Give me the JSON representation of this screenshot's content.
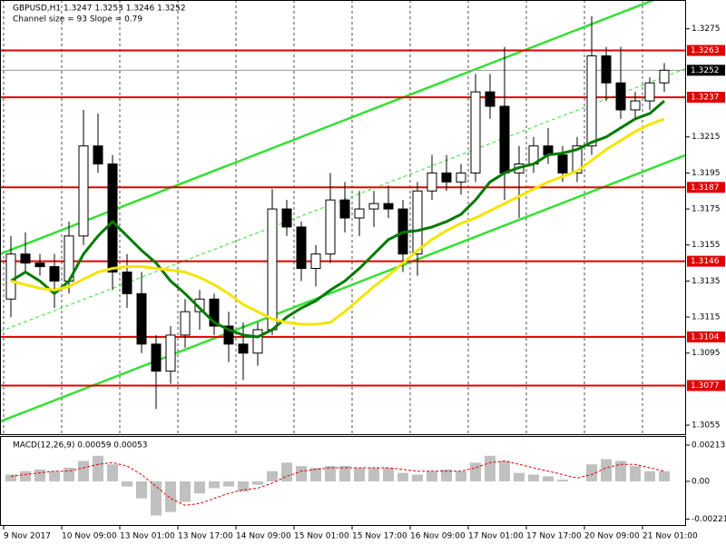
{
  "chart_data": [
    {
      "type": "candlestick",
      "title": "GBPUSD,H1  1.3247 1.3253 1.3246 1.3252",
      "subtitle": "Channel size = 93 Slope = 0.79",
      "categories": [
        "9 Nov 2017",
        null,
        null,
        null,
        "10 Nov 09:00",
        null,
        null,
        null,
        "13 Nov 01:00",
        null,
        null,
        null,
        "13 Nov 17:00",
        null,
        null,
        null,
        "14 Nov 09:00",
        null,
        null,
        null,
        "15 Nov 01:00",
        null,
        null,
        null,
        "15 Nov 17:00",
        null,
        null,
        null,
        "16 Nov 09:00",
        null,
        null,
        null,
        "17 Nov 01:00",
        null,
        null,
        null,
        "17 Nov 17:00",
        null,
        null,
        null,
        "20 Nov 09:00",
        null,
        null,
        null,
        "21 Nov 01:00",
        null
      ],
      "open": [
        1.3125,
        1.315,
        1.3145,
        1.3143,
        1.3135,
        1.316,
        1.321,
        1.32,
        1.314,
        1.3128,
        1.31,
        1.3085,
        1.3105,
        1.3118,
        1.3125,
        1.311,
        1.31,
        1.3095,
        1.3108,
        1.3175,
        1.3165,
        1.3142,
        1.315,
        1.318,
        1.317,
        1.3175,
        1.3178,
        1.3175,
        1.315,
        1.3185,
        1.3195,
        1.319,
        1.3195,
        1.324,
        1.3232,
        1.3195,
        1.32,
        1.321,
        1.3205,
        1.3195,
        1.321,
        1.326,
        1.3245,
        1.323,
        1.3235,
        1.3245
      ],
      "high": [
        1.316,
        1.3162,
        1.315,
        1.315,
        1.3168,
        1.323,
        1.3228,
        1.3205,
        1.315,
        1.314,
        1.3105,
        1.311,
        1.3125,
        1.313,
        1.3128,
        1.3118,
        1.3112,
        1.3112,
        1.3186,
        1.318,
        1.3168,
        1.3155,
        1.3195,
        1.319,
        1.3185,
        1.3185,
        1.3188,
        1.318,
        1.319,
        1.3205,
        1.3205,
        1.32,
        1.325,
        1.325,
        1.3265,
        1.321,
        1.3215,
        1.322,
        1.321,
        1.3215,
        1.3282,
        1.3265,
        1.3265,
        1.324,
        1.3248,
        1.3256
      ],
      "low": [
        1.3115,
        1.314,
        1.3138,
        1.312,
        1.3128,
        1.3155,
        1.3195,
        1.313,
        1.312,
        1.3095,
        1.3064,
        1.3078,
        1.3098,
        1.3108,
        1.3105,
        1.309,
        1.308,
        1.3088,
        1.3105,
        1.316,
        1.3135,
        1.3132,
        1.3145,
        1.3162,
        1.316,
        1.3165,
        1.317,
        1.314,
        1.3138,
        1.318,
        1.3185,
        1.3183,
        1.319,
        1.3225,
        1.318,
        1.317,
        1.3195,
        1.32,
        1.319,
        1.319,
        1.3205,
        1.3235,
        1.3225,
        1.3225,
        1.323,
        1.324
      ],
      "close": [
        1.315,
        1.3145,
        1.3143,
        1.3135,
        1.316,
        1.321,
        1.32,
        1.314,
        1.3128,
        1.31,
        1.3085,
        1.3105,
        1.3118,
        1.3125,
        1.311,
        1.31,
        1.3095,
        1.3108,
        1.3175,
        1.3165,
        1.3142,
        1.315,
        1.318,
        1.317,
        1.3175,
        1.3178,
        1.3175,
        1.315,
        1.3185,
        1.3195,
        1.319,
        1.3195,
        1.324,
        1.3232,
        1.3195,
        1.32,
        1.321,
        1.3205,
        1.3195,
        1.321,
        1.326,
        1.3245,
        1.323,
        1.3235,
        1.3245,
        1.3252
      ],
      "moving_averages": [
        {
          "color": "#007a00",
          "values": [
            1.3135,
            1.314,
            1.3135,
            1.3128,
            1.3135,
            1.315,
            1.316,
            1.3168,
            1.316,
            1.3152,
            1.3145,
            1.3135,
            1.3128,
            1.312,
            1.3112,
            1.3108,
            1.3105,
            1.3104,
            1.3108,
            1.3115,
            1.312,
            1.3124,
            1.313,
            1.3135,
            1.3142,
            1.315,
            1.3158,
            1.3162,
            1.3163,
            1.3165,
            1.3168,
            1.3172,
            1.318,
            1.319,
            1.3195,
            1.3198,
            1.32,
            1.3205,
            1.3206,
            1.3208,
            1.3212,
            1.3215,
            1.322,
            1.3225,
            1.3228,
            1.3235
          ]
        },
        {
          "color": "#f2e600",
          "values": [
            1.3135,
            1.3133,
            1.3131,
            1.313,
            1.3132,
            1.3136,
            1.314,
            1.3142,
            1.3143,
            1.3143,
            1.3142,
            1.3141,
            1.314,
            1.3137,
            1.3133,
            1.3128,
            1.3122,
            1.3118,
            1.3114,
            1.3112,
            1.3111,
            1.3111,
            1.3112,
            1.3118,
            1.3125,
            1.3132,
            1.3138,
            1.3145,
            1.3152,
            1.3158,
            1.3163,
            1.3167,
            1.317,
            1.3174,
            1.3178,
            1.3182,
            1.3186,
            1.319,
            1.3193,
            1.3196,
            1.3202,
            1.3208,
            1.3213,
            1.3218,
            1.3222,
            1.3225
          ]
        }
      ],
      "channel": [
        {
          "color": "#33e033",
          "values": [
            1.3057,
            1.3205
          ]
        },
        {
          "color": "#33e033",
          "values": [
            1.315,
            1.3298
          ]
        },
        {
          "color": "#33e033",
          "dashed": true,
          "values": [
            1.3107,
            1.3253
          ]
        }
      ],
      "levels": [
        1.3263,
        1.3237,
        1.3187,
        1.3146,
        1.3104,
        1.3077
      ],
      "level_color": "#e00000",
      "current_price": 1.3252,
      "ylim": [
        1.305,
        1.3291
      ],
      "yticks": [
        1.3275,
        1.3215,
        1.3195,
        1.3175,
        1.3155,
        1.3135,
        1.3115,
        1.3095,
        1.3055
      ],
      "grid": true
    },
    {
      "type": "macd",
      "title": "MACD(12,26,9) 0.00059 0.00053",
      "histogram": {
        "color": "#c0c0c0",
        "values": [
          0.0004,
          0.0006,
          0.0007,
          0.0006,
          0.0008,
          0.0012,
          0.0015,
          0.001,
          -0.0003,
          -0.001,
          -0.002,
          -0.0018,
          -0.0012,
          -0.0007,
          -0.0004,
          -0.0003,
          -0.0006,
          -0.0002,
          0.0006,
          0.0011,
          0.0009,
          0.0008,
          0.0009,
          0.0009,
          0.0008,
          0.0008,
          0.0008,
          0.0005,
          0.0004,
          0.0006,
          0.0007,
          0.0006,
          0.0011,
          0.0015,
          0.0012,
          0.0005,
          0.0004,
          0.0003,
          0.0001,
          0,
          0.001,
          0.0013,
          0.0012,
          0.0009,
          0.0006,
          0.0006
        ]
      },
      "signal": {
        "color": "#e00000",
        "values": [
          0.0003,
          0.0004,
          0.0005,
          0.0006,
          0.0006,
          0.0008,
          0.001,
          0.0011,
          0.0009,
          0.0004,
          -0.0003,
          -0.001,
          -0.0014,
          -0.0013,
          -0.001,
          -0.0007,
          -0.0005,
          -0.0004,
          -0.0001,
          0.0003,
          0.0006,
          0.0007,
          0.0008,
          0.0008,
          0.0008,
          0.0008,
          0.0008,
          0.0007,
          0.0006,
          0.0006,
          0.0006,
          0.0006,
          0.0008,
          0.0011,
          0.0012,
          0.001,
          0.0008,
          0.0006,
          0.0004,
          0.0002,
          0.0004,
          0.0008,
          0.001,
          0.001,
          0.0008,
          0.0006
        ]
      },
      "ylim": [
        -0.00256,
        0.00261
      ],
      "yticks": [
        0.00213,
        {
          "value": 0,
          "label": "0.00"
        },
        -0.00221
      ]
    }
  ]
}
